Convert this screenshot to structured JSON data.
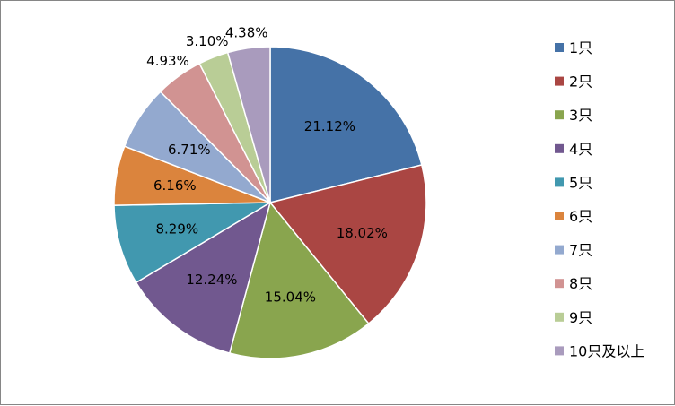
{
  "chart_data": {
    "type": "pie",
    "title": "",
    "legend_position": "right",
    "start_angle_deg": 0,
    "direction": "clockwise",
    "categories": [
      "1只",
      "2只",
      "3只",
      "4只",
      "5只",
      "6只",
      "7只",
      "8只",
      "9只",
      "10只及以上"
    ],
    "values": [
      21.12,
      18.02,
      15.04,
      12.24,
      8.29,
      6.16,
      6.71,
      4.93,
      3.1,
      4.38
    ],
    "labels": [
      "21.12%",
      "18.02%",
      "15.04%",
      "12.24%",
      "8.29%",
      "6.16%",
      "6.71%",
      "4.93%",
      "3.10%",
      "4.38%"
    ],
    "colors": [
      "#4572A7",
      "#AA4643",
      "#89A54E",
      "#71588F",
      "#4198AF",
      "#DB843D",
      "#93A9CF",
      "#D19392",
      "#B9CD96",
      "#A99BBD"
    ]
  }
}
